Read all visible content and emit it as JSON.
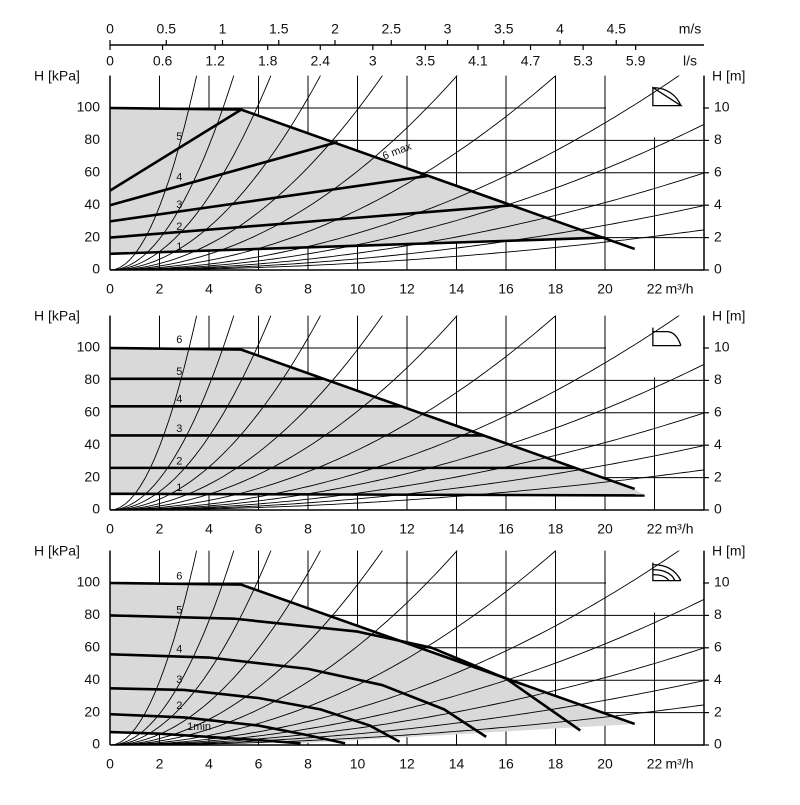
{
  "flow_axes": [
    {
      "label": "m/s",
      "lim": [
        0,
        5.28
      ],
      "ticks": [
        0,
        0.5,
        1,
        1.5,
        2,
        2.5,
        3,
        3.5,
        4,
        4.5
      ]
    },
    {
      "label": "l/s",
      "lim": [
        0,
        6.667
      ],
      "ticks": [
        0,
        {
          "value": 0.59,
          "label": "0.6"
        },
        {
          "value": 1.18,
          "label": "1.2"
        },
        {
          "value": 1.77,
          "label": "1.8"
        },
        {
          "value": 2.36,
          "label": "2.4"
        },
        {
          "value": 2.95,
          "label": "3"
        },
        {
          "value": 3.54,
          "label": "3.5"
        },
        {
          "value": 4.13,
          "label": "4.1"
        },
        {
          "value": 4.72,
          "label": "4.7"
        },
        {
          "value": 5.31,
          "label": "5.3"
        },
        {
          "value": 5.9,
          "label": "5.9"
        }
      ]
    }
  ],
  "system_curves": [
    9.8,
    4.8,
    2.84,
    1.66,
    0.99,
    0.61,
    0.37,
    0.227,
    0.156,
    0.104,
    0.069,
    0.043
  ],
  "chart_data": [
    {
      "type": "line",
      "ylabel": "H [kPa]",
      "y2label": "H [m]",
      "xlabel": "m³/h",
      "xlim": [
        0,
        24
      ],
      "xticks": [
        0,
        2,
        4,
        6,
        8,
        10,
        12,
        14,
        16,
        18,
        20,
        22
      ],
      "ylim": [
        0,
        120
      ],
      "yticks": [
        0,
        20,
        40,
        60,
        80,
        100
      ],
      "y2lim": [
        0,
        12
      ],
      "y2ticks": [
        0,
        2,
        4,
        6,
        8,
        10
      ],
      "grid": true,
      "line_color": "#000000",
      "fill_color": "#d9d9d9",
      "series": [
        {
          "name": "6 max",
          "x": [
            0,
            5.3,
            21.2
          ],
          "values": [
            100,
            99,
            13
          ]
        },
        {
          "name": "5",
          "x": [
            0,
            5.3
          ],
          "values": [
            49,
            99
          ]
        },
        {
          "name": "4",
          "x": [
            0,
            9.2
          ],
          "values": [
            40,
            79
          ]
        },
        {
          "name": "3",
          "x": [
            0,
            12.8
          ],
          "values": [
            30,
            58
          ]
        },
        {
          "name": "2",
          "x": [
            0,
            16.3
          ],
          "values": [
            20,
            40
          ]
        },
        {
          "name": "1",
          "x": [
            0,
            20
          ],
          "values": [
            10,
            20
          ]
        }
      ]
    },
    {
      "type": "line",
      "ylabel": "H [kPa]",
      "y2label": "H [m]",
      "xlabel": "m³/h",
      "xlim": [
        0,
        24
      ],
      "xticks": [
        0,
        2,
        4,
        6,
        8,
        10,
        12,
        14,
        16,
        18,
        20,
        22
      ],
      "ylim": [
        0,
        120
      ],
      "yticks": [
        0,
        20,
        40,
        60,
        80,
        100
      ],
      "y2lim": [
        0,
        12
      ],
      "y2ticks": [
        0,
        2,
        4,
        6,
        8,
        10
      ],
      "grid": true,
      "line_color": "#000000",
      "fill_color": "#d9d9d9",
      "series": [
        {
          "name": "6",
          "x": [
            0,
            5.3,
            21.2
          ],
          "values": [
            100,
            99,
            13
          ]
        },
        {
          "name": "5",
          "x": [
            0,
            8.6
          ],
          "values": [
            81,
            81
          ]
        },
        {
          "name": "4",
          "x": [
            0,
            11.8
          ],
          "values": [
            64,
            64
          ]
        },
        {
          "name": "3",
          "x": [
            0,
            15.1
          ],
          "values": [
            46,
            46
          ]
        },
        {
          "name": "2",
          "x": [
            0,
            18.8
          ],
          "values": [
            26,
            26
          ]
        },
        {
          "name": "1",
          "x": [
            0,
            21.6
          ],
          "values": [
            10,
            9
          ]
        }
      ]
    },
    {
      "type": "line",
      "ylabel": "H [kPa]",
      "y2label": "H [m]",
      "xlabel": "m³/h",
      "xlim": [
        0,
        24
      ],
      "xticks": [
        0,
        2,
        4,
        6,
        8,
        10,
        12,
        14,
        16,
        18,
        20,
        22
      ],
      "ylim": [
        0,
        120
      ],
      "yticks": [
        0,
        20,
        40,
        60,
        80,
        100
      ],
      "y2lim": [
        0,
        12
      ],
      "y2ticks": [
        0,
        2,
        4,
        6,
        8,
        10
      ],
      "grid": true,
      "line_color": "#000000",
      "fill_color": "#d9d9d9",
      "series": [
        {
          "name": "6",
          "x": [
            0,
            5.3,
            21.2
          ],
          "values": [
            100,
            99,
            13
          ]
        },
        {
          "name": "5",
          "x": [
            0,
            5,
            10,
            13,
            16,
            19
          ],
          "values": [
            80,
            78,
            70,
            60,
            41,
            9
          ]
        },
        {
          "name": "4",
          "x": [
            0,
            4,
            8,
            11,
            13.5,
            15.2
          ],
          "values": [
            56,
            54,
            47,
            37,
            22,
            5
          ]
        },
        {
          "name": "3",
          "x": [
            0,
            3,
            6,
            8.5,
            10.5,
            11.7
          ],
          "values": [
            35,
            34,
            29,
            22,
            12,
            2
          ]
        },
        {
          "name": "2",
          "x": [
            0,
            3,
            6,
            8,
            9.5
          ],
          "values": [
            19,
            17,
            12,
            6,
            1
          ]
        },
        {
          "name": "1min",
          "x": [
            0,
            2,
            4,
            6,
            7.7
          ],
          "values": [
            8,
            7,
            5,
            3,
            1
          ]
        }
      ]
    }
  ]
}
